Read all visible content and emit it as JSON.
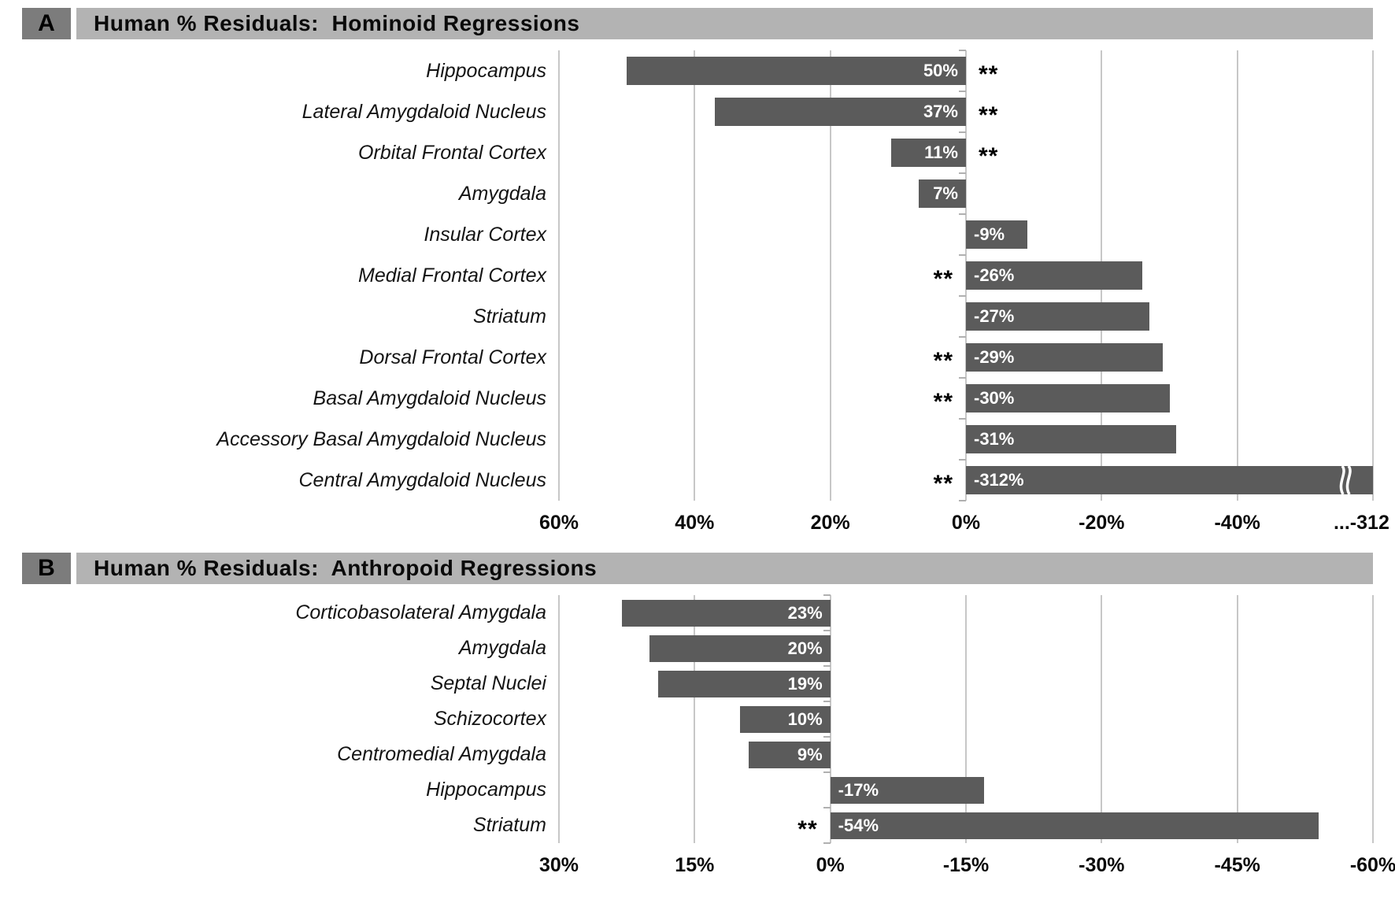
{
  "colors": {
    "bar": "#5b5b5b",
    "header_bg": "#b3b3b3",
    "letter_bg": "#7c7c7c",
    "gridline": "#c7c7c7",
    "value_label": "#ffffff",
    "text": "#111111"
  },
  "chart_data": [
    {
      "type": "bar",
      "orientation": "horizontal",
      "panel_letter": "A",
      "title": "Human % Residuals:  Hominoid Regressions",
      "axis_direction": "positive-left",
      "significance_marker": "**",
      "axis": {
        "max": 60,
        "min": -60,
        "tick_values": [
          60,
          40,
          20,
          0,
          -20,
          -40,
          -60
        ],
        "tick_labels": [
          "60%",
          "40%",
          "20%",
          "0%",
          "-20%",
          "-40%",
          "...-312 %"
        ],
        "note": "last gridline is a broken axis standing in for -312%"
      },
      "bars": [
        {
          "category": "Hippocampus",
          "value": 50,
          "label": "50%",
          "significant": true
        },
        {
          "category": "Lateral Amygdaloid Nucleus",
          "value": 37,
          "label": "37%",
          "significant": true
        },
        {
          "category": "Orbital Frontal Cortex",
          "value": 11,
          "label": "11%",
          "significant": true
        },
        {
          "category": "Amygdala",
          "value": 7,
          "label": "7%",
          "significant": false
        },
        {
          "category": "Insular Cortex",
          "value": -9,
          "label": "-9%",
          "significant": false
        },
        {
          "category": "Medial Frontal Cortex",
          "value": -26,
          "label": "-26%",
          "significant": true
        },
        {
          "category": "Striatum",
          "value": -27,
          "label": "-27%",
          "significant": false
        },
        {
          "category": "Dorsal Frontal Cortex",
          "value": -29,
          "label": "-29%",
          "significant": true
        },
        {
          "category": "Basal Amygdaloid Nucleus",
          "value": -30,
          "label": "-30%",
          "significant": true
        },
        {
          "category": "Accessory Basal Amygdaloid Nucleus",
          "value": -31,
          "label": "-31%",
          "significant": false
        },
        {
          "category": "Central Amygdaloid Nucleus",
          "value": -312,
          "label": "-312%",
          "significant": true,
          "axis_break": true
        }
      ]
    },
    {
      "type": "bar",
      "orientation": "horizontal",
      "panel_letter": "B",
      "title": "Human % Residuals:  Anthropoid Regressions",
      "axis_direction": "positive-left",
      "significance_marker": "**",
      "axis": {
        "max": 30,
        "min": -60,
        "tick_values": [
          30,
          15,
          0,
          -15,
          -30,
          -45,
          -60
        ],
        "tick_labels": [
          "30%",
          "15%",
          "0%",
          "-15%",
          "-30%",
          "-45%",
          "-60%"
        ]
      },
      "bars": [
        {
          "category": "Corticobasolateral Amygdala",
          "value": 23,
          "label": "23%",
          "significant": false
        },
        {
          "category": "Amygdala",
          "value": 20,
          "label": "20%",
          "significant": false
        },
        {
          "category": "Septal Nuclei",
          "value": 19,
          "label": "19%",
          "significant": false
        },
        {
          "category": "Schizocortex",
          "value": 10,
          "label": "10%",
          "significant": false
        },
        {
          "category": "Centromedial Amygdala",
          "value": 9,
          "label": "9%",
          "significant": false
        },
        {
          "category": "Hippocampus",
          "value": -17,
          "label": "-17%",
          "significant": false
        },
        {
          "category": "Striatum",
          "value": -54,
          "label": "-54%",
          "significant": true
        }
      ]
    }
  ]
}
